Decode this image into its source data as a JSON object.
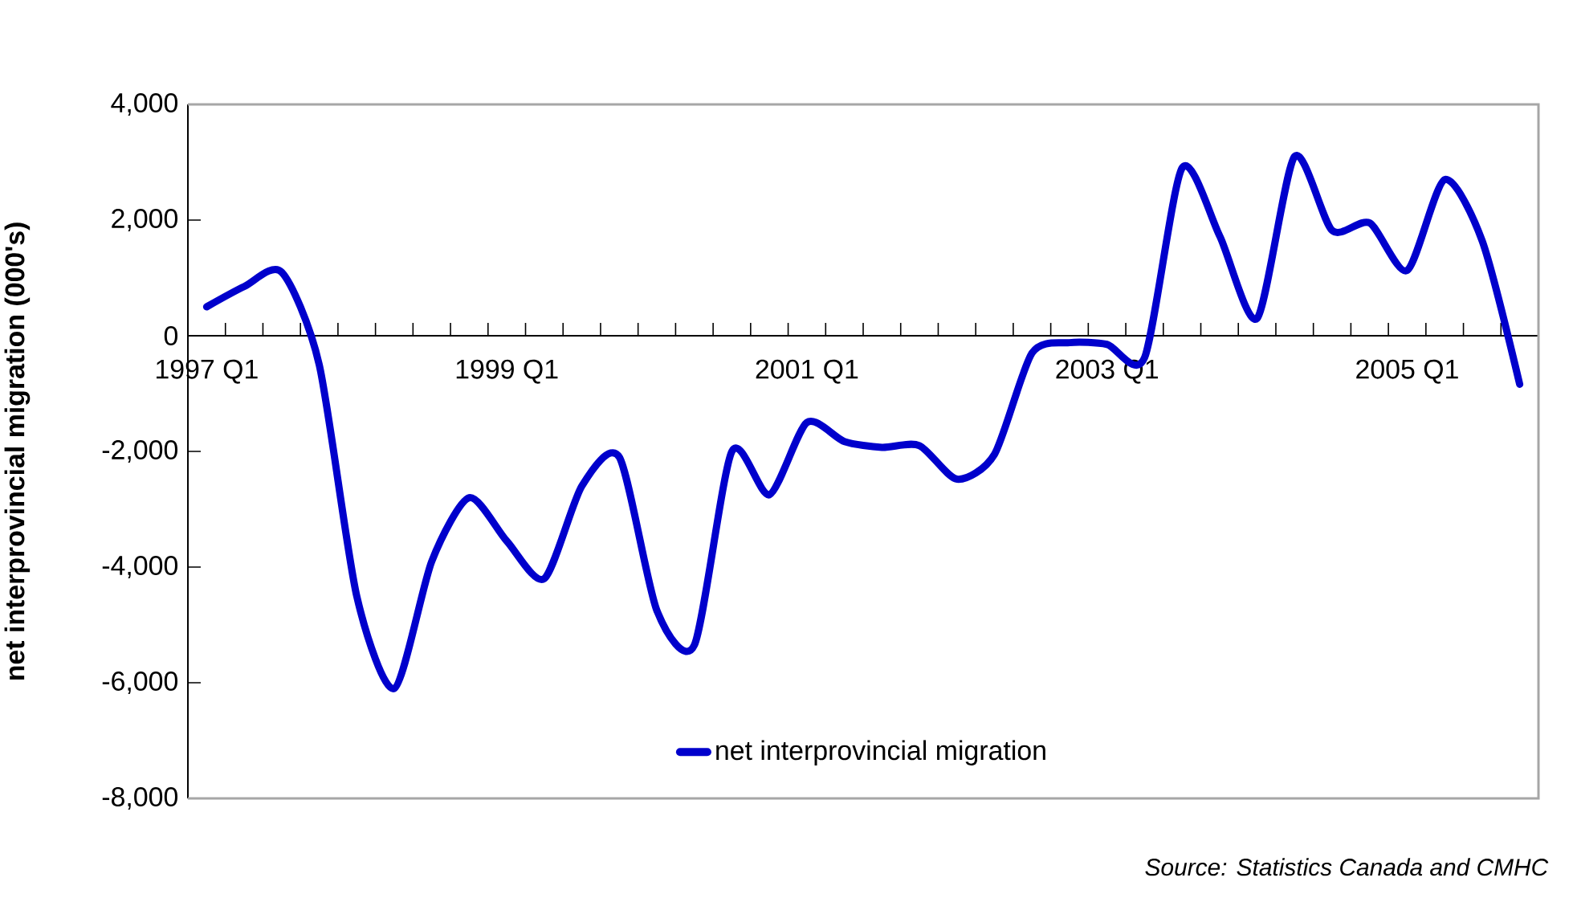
{
  "chart_data": {
    "type": "line",
    "ylabel": "net interprovincial migration (000's)",
    "annotations": [
      "Source:  Statistics Canada and CMHC"
    ],
    "categories": [
      "1997 Q1",
      null,
      null,
      null,
      null,
      null,
      null,
      null,
      "1999 Q1",
      null,
      null,
      null,
      null,
      null,
      null,
      null,
      "2001 Q1",
      null,
      null,
      null,
      null,
      null,
      null,
      null,
      "2003 Q1",
      null,
      null,
      null,
      null,
      null,
      null,
      null,
      "2005 Q1",
      null,
      null,
      null
    ],
    "series": [
      {
        "name": "net interprovincial migration",
        "color": "#0000cc",
        "values": [
          500,
          850,
          1100,
          -500,
          -4500,
          -6100,
          -3900,
          -2800,
          -3550,
          -4200,
          -2600,
          -2100,
          -4750,
          -5350,
          -2000,
          -2750,
          -1500,
          -1830,
          -1930,
          -1900,
          -2480,
          -2050,
          -300,
          -120,
          -150,
          -380,
          2900,
          1730,
          300,
          3100,
          1820,
          1950,
          1130,
          2700,
          1640,
          -840
        ]
      }
    ],
    "ylim": [
      -8000,
      4000
    ],
    "yticks": [
      {
        "value": -8000,
        "label": "-8,000"
      },
      {
        "value": -6000,
        "label": "-6,000"
      },
      {
        "value": -4000,
        "label": "-4,000"
      },
      {
        "value": -2000,
        "label": "-2,000"
      },
      {
        "value": 0,
        "label": "0"
      },
      {
        "value": 2000,
        "label": "2,000"
      },
      {
        "value": 4000,
        "label": "4,000"
      }
    ],
    "legend": "bottom"
  }
}
